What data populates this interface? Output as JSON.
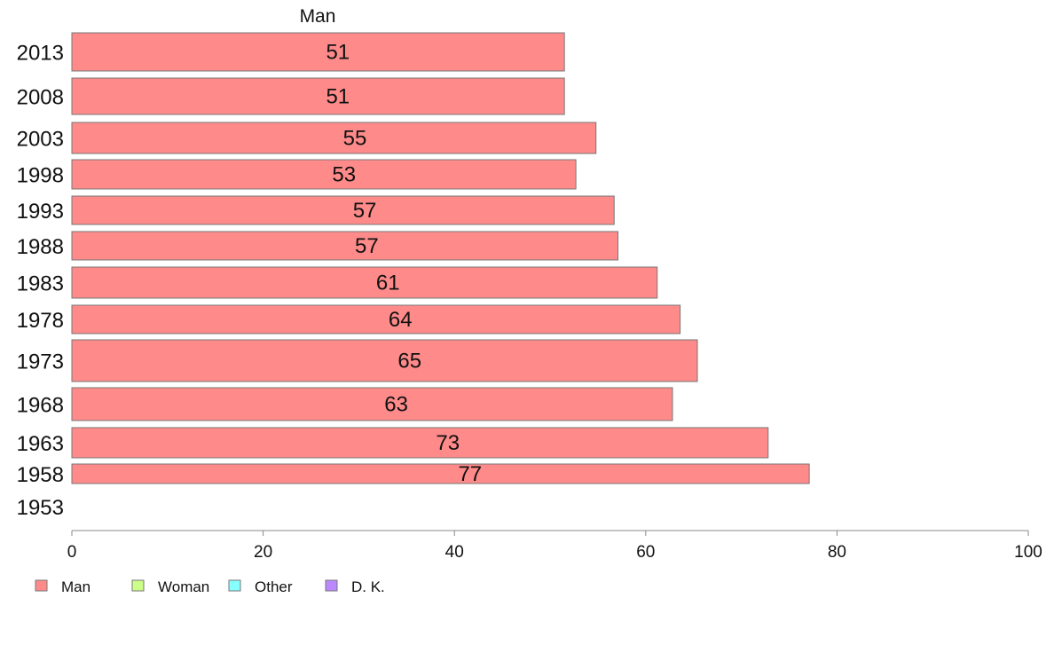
{
  "chart_data": {
    "type": "bar",
    "orientation": "horizontal",
    "header": "Man",
    "categories": [
      "2013",
      "2008",
      "2003",
      "1998",
      "1993",
      "1988",
      "1983",
      "1978",
      "1973",
      "1968",
      "1963",
      "1958",
      "1953"
    ],
    "series": [
      {
        "name": "Man",
        "color": "#ff8a8a",
        "values": [
          51.5,
          51.5,
          54.8,
          52.7,
          56.7,
          57.1,
          61.2,
          63.6,
          65.4,
          62.8,
          72.8,
          77.1,
          null
        ],
        "labels": [
          "51",
          "51",
          "55",
          "53",
          "57",
          "57",
          "61",
          "64",
          "65",
          "63",
          "73",
          "77",
          ""
        ]
      },
      {
        "name": "Woman",
        "color": "#ccff88",
        "values": [
          null,
          null,
          null,
          null,
          null,
          null,
          null,
          null,
          null,
          null,
          null,
          null,
          null
        ]
      },
      {
        "name": "Other",
        "color": "#88ffff",
        "values": [
          null,
          null,
          null,
          null,
          null,
          null,
          null,
          null,
          null,
          null,
          null,
          null,
          null
        ]
      },
      {
        "name": "D. K.",
        "color": "#bb88ff",
        "values": [
          null,
          null,
          null,
          null,
          null,
          null,
          null,
          null,
          null,
          null,
          null,
          null,
          null
        ]
      }
    ],
    "xlim": [
      0,
      100
    ],
    "xticks": [
      0,
      20,
      40,
      60,
      80,
      100
    ],
    "grid": false,
    "legend_position": "bottom-left",
    "bar_border_color": "#777777",
    "axis_color": "#888888"
  }
}
